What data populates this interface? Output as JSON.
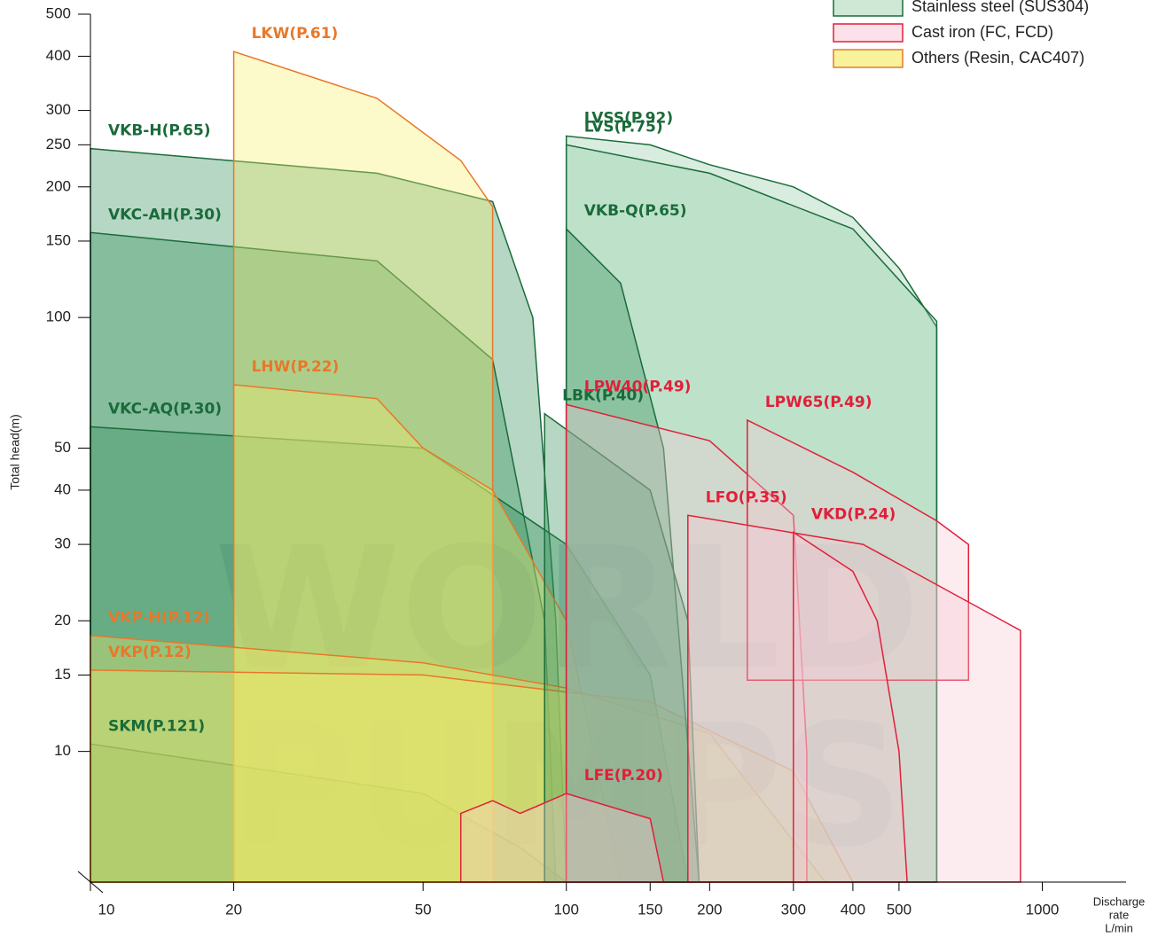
{
  "chart_data": {
    "type": "area",
    "xscale": "log",
    "yscale": "log",
    "xlim": [
      10,
      1500
    ],
    "ylim": [
      5,
      500
    ],
    "xticks": [
      10,
      20,
      50,
      100,
      150,
      200,
      300,
      400,
      500,
      1000
    ],
    "yticks": [
      10,
      15,
      20,
      30,
      40,
      50,
      100,
      150,
      200,
      250,
      300,
      400,
      500
    ],
    "ylabel": "Total head(m)",
    "xlabel": [
      "Discharge",
      "rate",
      "L/min"
    ],
    "watermark": [
      "WORLD",
      "PUMPS"
    ],
    "legend": [
      {
        "name": "Stainless steel (SUS304)",
        "fill": "#cfe8d6",
        "color": "#1a6b3a"
      },
      {
        "name": "Cast iron (FC, FCD)",
        "fill": "#fbe1ea",
        "color": "#e0203a"
      },
      {
        "name": "Others (Resin, CAC407)",
        "fill": "#f8f39a",
        "color": "#e8782a"
      }
    ],
    "series": [
      {
        "name": "VKB-H(P.65)",
        "color": "#1a6b3a",
        "fill": "#2e8b57",
        "x": [
          10,
          10,
          40,
          70,
          85,
          95,
          100
        ],
        "y": [
          5,
          245,
          215,
          185,
          100,
          20,
          5
        ]
      },
      {
        "name": "VKC-AH(P.30)",
        "color": "#1a6b3a",
        "fill": "#2e8b57",
        "x": [
          10,
          10,
          40,
          70,
          90,
          95
        ],
        "y": [
          5,
          157,
          135,
          80,
          20,
          5
        ]
      },
      {
        "name": "VKC-AQ(P.30)",
        "color": "#1a6b3a",
        "fill": "#2e8b57",
        "x": [
          10,
          10,
          50,
          100,
          150,
          180
        ],
        "y": [
          5,
          56,
          50,
          30,
          15,
          5
        ]
      },
      {
        "name": "SKM(P.121)",
        "color": "#1a6b3a",
        "fill": "#2e8b57",
        "x": [
          10,
          10,
          50,
          80,
          100
        ],
        "y": [
          5,
          10.4,
          8,
          6,
          5
        ]
      },
      {
        "name": "LKW(P.61)",
        "color": "#e8782a",
        "fill": "#f7ef6a",
        "x": [
          20,
          20,
          40,
          60,
          70,
          70
        ],
        "y": [
          5,
          410,
          320,
          230,
          180,
          5
        ]
      },
      {
        "name": "LHW(P.22)",
        "color": "#e8782a",
        "fill": "#f7ef6a",
        "x": [
          20,
          20,
          40,
          50,
          70,
          100,
          130
        ],
        "y": [
          5,
          70,
          65,
          50,
          40,
          20,
          5
        ]
      },
      {
        "name": "VKP-H(P.12)",
        "color": "#e8782a",
        "fill": "#f7ef6a",
        "x": [
          10,
          10,
          50,
          100,
          200,
          350
        ],
        "y": [
          5,
          18.5,
          16,
          14,
          11,
          5
        ]
      },
      {
        "name": "VKP(P.12)",
        "color": "#e8782a",
        "fill": "#f7ef6a",
        "x": [
          10,
          10,
          50,
          150,
          300,
          400
        ],
        "y": [
          5,
          15.4,
          15,
          13,
          9,
          5
        ]
      },
      {
        "name": "LVSS(P.92)",
        "color": "#1a6b3a",
        "fill": "#8fcaa2",
        "x": [
          100,
          100,
          150,
          200,
          300,
          400,
          500,
          600,
          600
        ],
        "y": [
          5,
          262,
          250,
          225,
          200,
          170,
          130,
          95,
          5
        ]
      },
      {
        "name": "LVS(P.75)",
        "color": "#1a6b3a",
        "fill": "#8fcaa2",
        "x": [
          100,
          100,
          200,
          400,
          600,
          600
        ],
        "y": [
          5,
          250,
          215,
          160,
          98,
          5
        ]
      },
      {
        "name": "VKB-Q(P.65)",
        "color": "#1a6b3a",
        "fill": "#2e8b57",
        "x": [
          100,
          100,
          130,
          160,
          190
        ],
        "y": [
          5,
          160,
          120,
          50,
          5
        ]
      },
      {
        "name": "LBK(P.40)",
        "color": "#1a6b3a",
        "fill": "#2e8b57",
        "x": [
          90,
          90,
          150,
          180,
          190
        ],
        "y": [
          5,
          60,
          40,
          20,
          5
        ]
      },
      {
        "name": "LPW40(P.49)",
        "color": "#e0203a",
        "fill": "#f6c8d4",
        "x": [
          100,
          100,
          200,
          300,
          320,
          320
        ],
        "y": [
          5,
          63,
          52,
          35,
          10,
          5
        ]
      },
      {
        "name": "LPW65(P.49)",
        "color": "#e0203a",
        "fill": "#f6c8d4",
        "x": [
          240,
          240,
          400,
          600,
          700,
          700
        ],
        "y": [
          14.6,
          58,
          44,
          34,
          30,
          14.6
        ]
      },
      {
        "name": "LFO(P.35)",
        "color": "#e0203a",
        "fill": "#f6c8d4",
        "x": [
          180,
          180,
          420,
          900,
          900
        ],
        "y": [
          5,
          35,
          30,
          19,
          5
        ]
      },
      {
        "name": "VKD(P.24)",
        "color": "#e0203a",
        "fill": "#f6c8d4",
        "x": [
          300,
          300,
          400,
          450,
          500,
          520
        ],
        "y": [
          5,
          32,
          26,
          20,
          10,
          5
        ]
      },
      {
        "name": "LFE(P.20)",
        "color": "#e0203a",
        "fill": "#f6c8d4",
        "x": [
          60,
          60,
          70,
          80,
          100,
          150,
          160
        ],
        "y": [
          5,
          7.2,
          7.7,
          7.2,
          8,
          7,
          5
        ]
      }
    ]
  }
}
